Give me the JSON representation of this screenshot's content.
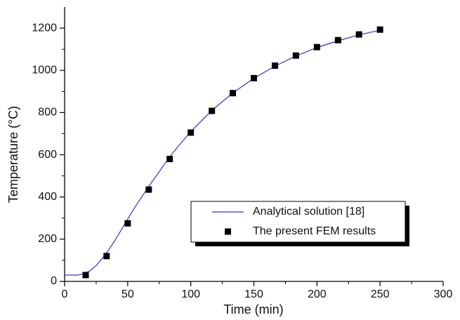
{
  "chart_data": {
    "type": "line",
    "x_label": "Time (min)",
    "y_label": "Temperature (°C)",
    "xlim": [
      0,
      300
    ],
    "xticks": [
      0,
      50,
      100,
      150,
      200,
      250,
      300
    ],
    "xminorticks": [
      25,
      75,
      125,
      175,
      225,
      275
    ],
    "ylim": [
      0,
      1300
    ],
    "yticks": [
      0,
      200,
      400,
      600,
      800,
      1000,
      1200
    ],
    "yminorticks": [
      100,
      300,
      500,
      700,
      900,
      1100
    ],
    "legend": "lower-right",
    "series": [
      {
        "name": "Analytical solution [18]",
        "type": "line",
        "color": "#3434d6",
        "x": [
          0,
          10,
          15,
          20,
          25,
          30,
          35,
          40,
          45,
          50,
          55,
          60,
          66.7,
          75,
          83.3,
          90,
          100,
          116.7,
          133.3,
          150,
          166.7,
          183.3,
          200,
          216.7,
          233.3,
          250
        ],
        "values": [
          30,
          30,
          35,
          50,
          75,
          110,
          150,
          195,
          245,
          295,
          345,
          390,
          450,
          520,
          590,
          640,
          710,
          810,
          893,
          962,
          1020,
          1068,
          1108,
          1140,
          1168,
          1190
        ]
      },
      {
        "name": "The present FEM results",
        "type": "scatter",
        "color": "#000000",
        "x": [
          16.7,
          33.3,
          50,
          66.7,
          83.3,
          100,
          116.7,
          133.3,
          150,
          166.7,
          183.3,
          200,
          216.7,
          233.3,
          250
        ],
        "values": [
          30,
          120,
          275,
          435,
          580,
          705,
          808,
          892,
          963,
          1022,
          1070,
          1110,
          1143,
          1170,
          1193
        ]
      }
    ]
  }
}
